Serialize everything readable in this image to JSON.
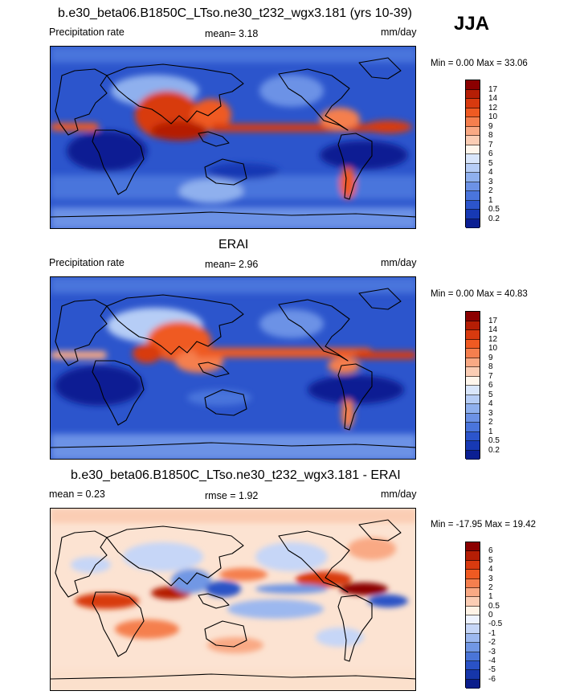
{
  "season": "JJA",
  "panels": [
    {
      "id": "model",
      "title": "b.e30_beta06.B1850C_LTso.ne30_t232_wgx3.181 (yrs 10-39)",
      "left_label": "Precipitation rate",
      "stat": "mean=   3.18",
      "units": "mm/day",
      "minmax": "Min =   0.00 Max =  33.06",
      "cbar_labels": [
        "17",
        "14",
        "12",
        "10",
        "9",
        "8",
        "7",
        "6",
        "5",
        "4",
        "3",
        "2",
        "1",
        "0.5",
        "0.2"
      ],
      "cbar_colors": [
        "#8b0000",
        "#b51e05",
        "#d83a0f",
        "#ef5a22",
        "#f57f4e",
        "#f9a984",
        "#fbcdb4",
        "#fff6ec",
        "#d9e6fb",
        "#b6cdf6",
        "#8fb0ee",
        "#6c92e6",
        "#4a75dc",
        "#2c55cc",
        "#1739b4",
        "#0b1f93"
      ]
    },
    {
      "id": "obs",
      "title": "ERAI",
      "left_label": "Precipitation rate",
      "stat": "mean=   2.96",
      "units": "mm/day",
      "minmax": "Min =   0.00 Max =  40.83",
      "cbar_labels": [
        "17",
        "14",
        "12",
        "10",
        "9",
        "8",
        "7",
        "6",
        "5",
        "4",
        "3",
        "2",
        "1",
        "0.5",
        "0.2"
      ],
      "cbar_colors": [
        "#8b0000",
        "#b51e05",
        "#d83a0f",
        "#ef5a22",
        "#f57f4e",
        "#f9a984",
        "#fbcdb4",
        "#fff6ec",
        "#d9e6fb",
        "#b6cdf6",
        "#8fb0ee",
        "#6c92e6",
        "#4a75dc",
        "#2c55cc",
        "#1739b4",
        "#0b1f93"
      ]
    },
    {
      "id": "diff",
      "title": "b.e30_beta06.B1850C_LTso.ne30_t232_wgx3.181 - ERAI",
      "left_label": "mean =   0.23",
      "stat": "rmse =   1.92",
      "units": "mm/day",
      "minmax": "Min = -17.95 Max =  19.42",
      "cbar_labels": [
        "6",
        "5",
        "4",
        "3",
        "2",
        "1",
        "0.5",
        "0",
        "-0.5",
        "-1",
        "-2",
        "-3",
        "-4",
        "-5",
        "-6"
      ],
      "cbar_colors": [
        "#8b0000",
        "#b51e05",
        "#d83a0f",
        "#ef5a22",
        "#f57f4e",
        "#f9a984",
        "#fbcdb4",
        "#fff3e6",
        "#eef3ff",
        "#c6d6f7",
        "#9cb8ef",
        "#7197e4",
        "#4a75d8",
        "#2a52c6",
        "#1636aa",
        "#0a1d8c"
      ]
    }
  ],
  "chart_data": [
    {
      "type": "heatmap",
      "title": "b.e30_beta06.B1850C_LTso.ne30_t232_wgx3.181 (yrs 10-39)",
      "variable": "Precipitation rate",
      "units": "mm/day",
      "season": "JJA",
      "mean": 3.18,
      "min": 0.0,
      "max": 33.06,
      "contour_levels": [
        0.2,
        0.5,
        1,
        2,
        3,
        4,
        5,
        6,
        7,
        8,
        9,
        10,
        12,
        14,
        17
      ],
      "projection": "cylindrical-equidistant"
    },
    {
      "type": "heatmap",
      "title": "ERAI",
      "variable": "Precipitation rate",
      "units": "mm/day",
      "season": "JJA",
      "mean": 2.96,
      "min": 0.0,
      "max": 40.83,
      "contour_levels": [
        0.2,
        0.5,
        1,
        2,
        3,
        4,
        5,
        6,
        7,
        8,
        9,
        10,
        12,
        14,
        17
      ],
      "projection": "cylindrical-equidistant"
    },
    {
      "type": "heatmap",
      "title": "b.e30_beta06.B1850C_LTso.ne30_t232_wgx3.181 - ERAI",
      "units": "mm/day",
      "season": "JJA",
      "mean": 0.23,
      "rmse": 1.92,
      "min": -17.95,
      "max": 19.42,
      "contour_levels": [
        -6,
        -5,
        -4,
        -3,
        -2,
        -1,
        -0.5,
        0,
        0.5,
        1,
        2,
        3,
        4,
        5,
        6
      ],
      "projection": "cylindrical-equidistant"
    }
  ]
}
